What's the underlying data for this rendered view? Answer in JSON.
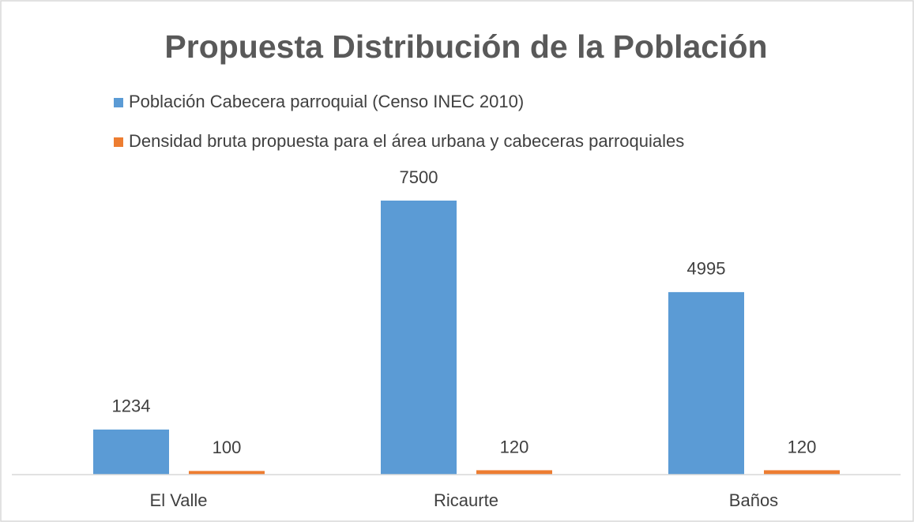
{
  "chart_data": {
    "type": "bar",
    "title": "Propuesta Distribución de la Población",
    "categories": [
      "El Valle",
      "Ricaurte",
      "Baños"
    ],
    "series": [
      {
        "name": "Población Cabecera parroquial (Censo INEC 2010)",
        "color": "#5b9bd5",
        "values": [
          1234,
          7500,
          4995
        ]
      },
      {
        "name": "Densidad bruta propuesta para el área urbana y cabeceras parroquiales",
        "color": "#ed7d31",
        "values": [
          100,
          120,
          120
        ]
      }
    ],
    "ylim": [
      0,
      7500
    ]
  }
}
